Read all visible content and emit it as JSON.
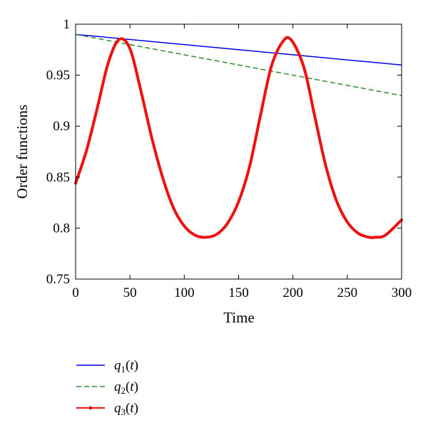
{
  "chart_data": {
    "type": "line",
    "title": "",
    "xlabel": "Time",
    "ylabel": "Order functions",
    "xlim": [
      0,
      300
    ],
    "ylim": [
      0.75,
      1
    ],
    "xticks": [
      0,
      50,
      100,
      150,
      200,
      250,
      300
    ],
    "yticks": [
      0.75,
      0.8,
      0.85,
      0.9,
      0.95,
      1
    ],
    "xtick_labels": [
      "0",
      "50",
      "100",
      "150",
      "200",
      "250",
      "300"
    ],
    "ytick_labels": [
      "0.75",
      "0.8",
      "0.85",
      "0.9",
      "0.95",
      "1"
    ],
    "grid": false,
    "legend_position": "below",
    "series": [
      {
        "name": "q1(t)",
        "legend": {
          "symbol": "q",
          "sub": "1",
          "arg": "t"
        },
        "color": "#0000ee",
        "style": "solid",
        "x": [
          0,
          300
        ],
        "y": [
          0.99,
          0.96
        ]
      },
      {
        "name": "q2(t)",
        "legend": {
          "symbol": "q",
          "sub": "2",
          "arg": "t"
        },
        "color": "#2e8b2e",
        "style": "dashed",
        "x": [
          0,
          300
        ],
        "y": [
          0.99,
          0.93
        ]
      },
      {
        "name": "q3(t)",
        "legend": {
          "symbol": "q",
          "sub": "3",
          "arg": "t"
        },
        "color": "#ee1111",
        "style": "thick",
        "x": [
          0,
          10,
          20,
          30,
          40,
          50,
          60,
          70,
          80,
          90,
          100,
          110,
          120,
          130,
          140,
          150,
          160,
          170,
          180,
          190,
          198,
          210,
          220,
          230,
          240,
          250,
          260,
          270,
          276,
          285,
          300
        ],
        "y": [
          0.844,
          0.876,
          0.918,
          0.962,
          0.985,
          0.976,
          0.935,
          0.889,
          0.85,
          0.82,
          0.802,
          0.793,
          0.791,
          0.794,
          0.805,
          0.826,
          0.86,
          0.91,
          0.958,
          0.982,
          0.985,
          0.958,
          0.91,
          0.862,
          0.827,
          0.806,
          0.795,
          0.791,
          0.791,
          0.793,
          0.808
        ]
      }
    ]
  }
}
